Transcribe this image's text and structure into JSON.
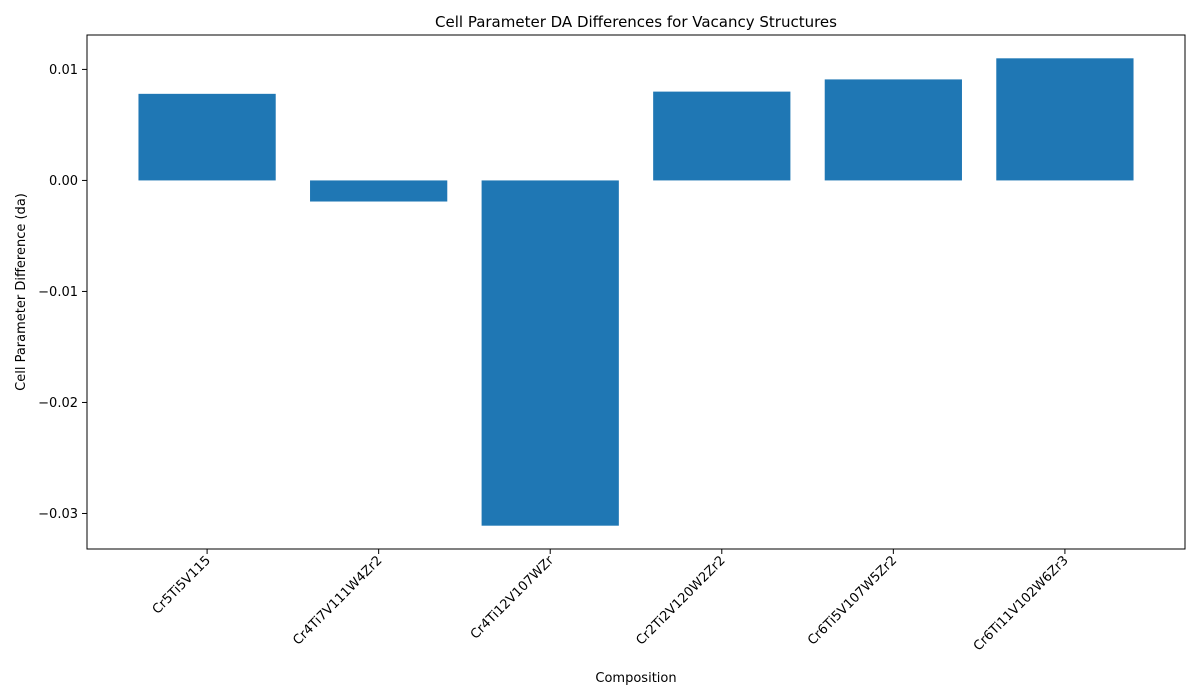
{
  "chart_data": {
    "type": "bar",
    "title": "Cell Parameter DA Differences for Vacancy Structures",
    "xlabel": "Composition",
    "ylabel": "Cell Parameter Difference (da)",
    "categories": [
      "Cr5Ti5V115",
      "Cr4Ti7V111W4Zr2",
      "Cr4Ti12V107WZr",
      "Cr2Ti2V120W2Zr2",
      "Cr6Ti5V107W5Zr2",
      "Cr6Ti11V102W6Zr3"
    ],
    "values": [
      0.0078,
      -0.0019,
      -0.0311,
      0.008,
      0.0091,
      0.011
    ],
    "ylim": [
      -0.0332,
      0.0131
    ],
    "yticks": [
      -0.03,
      -0.02,
      -0.01,
      0.0,
      0.01
    ],
    "ytick_labels": [
      "−0.03",
      "−0.02",
      "−0.01",
      "0.00",
      "0.01"
    ],
    "bar_color": "#1f77b4",
    "grid": false,
    "legend": false
  }
}
